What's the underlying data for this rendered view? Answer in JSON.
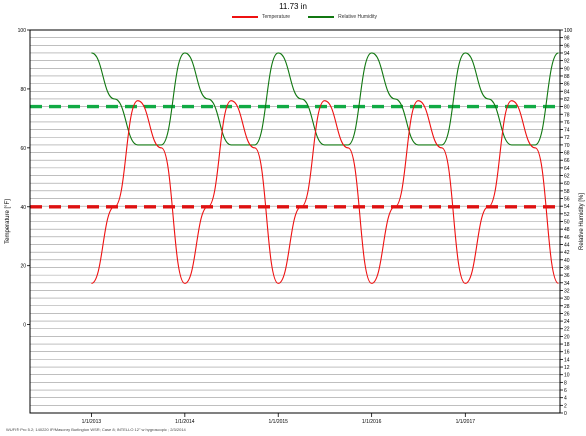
{
  "header": {
    "title": "11.73 in"
  },
  "footer": {
    "caption": "WUFI® Pro 5.2; 140220 IP/Masonry Burlington WSR; Case 8; INTELLO 12\" w hygroscopic ; 2/3/2014"
  },
  "chart_data": {
    "type": "line",
    "title": "11.73 in",
    "xlabel": "",
    "ylabel": "Temperature [°F]",
    "y2label": "Relative Humidity [%]",
    "ylim": [
      -30,
      100
    ],
    "y2lim": [
      0,
      100
    ],
    "y_ticks": [
      0,
      20,
      40,
      60,
      80,
      100
    ],
    "y2_ticks": [
      0,
      2,
      4,
      6,
      8,
      10,
      12,
      14,
      16,
      18,
      20,
      22,
      24,
      26,
      28,
      30,
      32,
      34,
      36,
      38,
      40,
      42,
      44,
      46,
      48,
      50,
      52,
      54,
      56,
      58,
      60,
      62,
      64,
      66,
      68,
      70,
      72,
      74,
      76,
      78,
      80,
      82,
      84,
      86,
      88,
      90,
      92,
      94,
      96,
      98,
      100
    ],
    "x_ticks": [
      "1/1/2013",
      "1/1/2014",
      "1/1/2015",
      "1/1/2016",
      "1/1/2017"
    ],
    "grid": true,
    "legend_position": "top-center",
    "colors": {
      "temperature": "#ee1111",
      "humidity": "#117711",
      "temp_limit": "#dd1111",
      "rh_limit": "#11aa44"
    },
    "series": [
      {
        "name": "Temperature",
        "axis": "left",
        "x": [
          "1/1/2013",
          "4/1/2013",
          "7/1/2013",
          "10/1/2013",
          "1/1/2014",
          "4/1/2014",
          "7/1/2014",
          "10/1/2014",
          "1/1/2015",
          "4/1/2015",
          "7/1/2015",
          "10/1/2015",
          "1/1/2016",
          "4/1/2016",
          "7/1/2016",
          "10/1/2016",
          "1/1/2017",
          "4/1/2017",
          "7/1/2017",
          "10/1/2017",
          "12/31/2017"
        ],
        "values": [
          14,
          40,
          76,
          60,
          14,
          40,
          76,
          60,
          14,
          40,
          76,
          60,
          14,
          40,
          76,
          60,
          14,
          40,
          76,
          60,
          14
        ]
      },
      {
        "name": "Relative Humidity",
        "axis": "right",
        "x": [
          "1/1/2013",
          "4/1/2013",
          "7/1/2013",
          "10/1/2013",
          "1/1/2014",
          "4/1/2014",
          "7/1/2014",
          "10/1/2014",
          "1/1/2015",
          "4/1/2015",
          "7/1/2015",
          "10/1/2015",
          "1/1/2016",
          "4/1/2016",
          "7/1/2016",
          "10/1/2016",
          "1/1/2017",
          "4/1/2017",
          "7/1/2017",
          "10/1/2017",
          "12/31/2017"
        ],
        "values": [
          94,
          82,
          70,
          70,
          94,
          82,
          70,
          70,
          94,
          82,
          70,
          70,
          94,
          82,
          70,
          70,
          94,
          82,
          70,
          70,
          94
        ]
      },
      {
        "name": "",
        "style": "dashed",
        "axis": "left",
        "x": [
          "1/1/2013",
          "12/31/2017"
        ],
        "values": [
          40,
          40
        ]
      },
      {
        "name": "",
        "style": "dashed",
        "axis": "right",
        "x": [
          "1/1/2013",
          "12/31/2017"
        ],
        "values": [
          80,
          80
        ]
      }
    ]
  }
}
